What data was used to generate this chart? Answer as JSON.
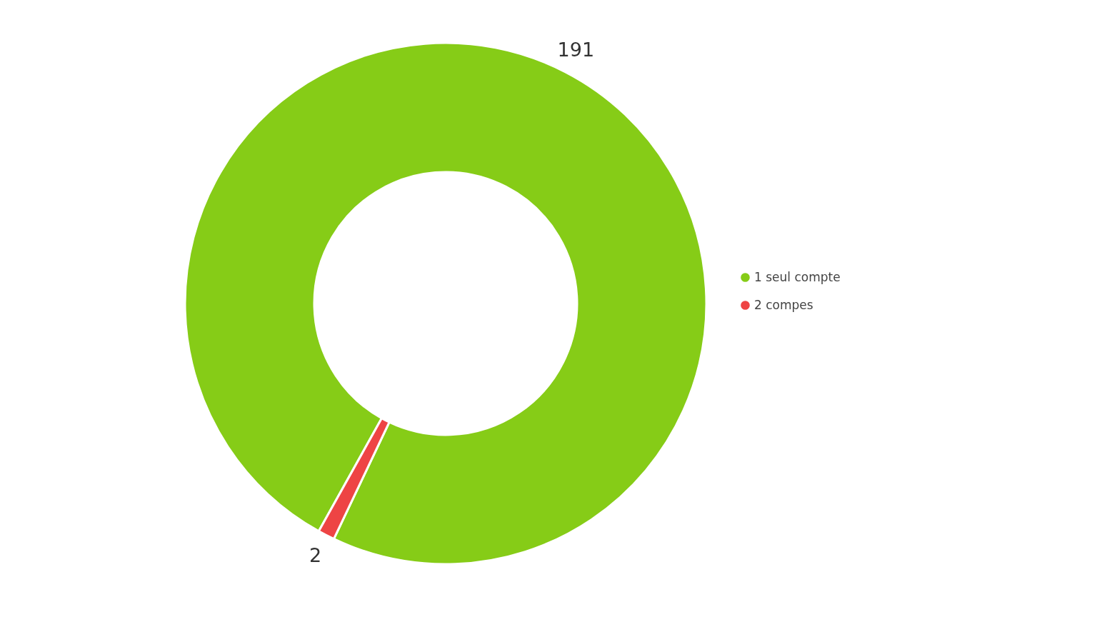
{
  "chart_data": {
    "type": "donut",
    "categories": [
      "1 seul compte",
      "2 compes"
    ],
    "values": [
      191,
      2
    ],
    "colors": [
      "#86cc17",
      "#ee4444"
    ],
    "data_labels": true,
    "legend": "right"
  }
}
